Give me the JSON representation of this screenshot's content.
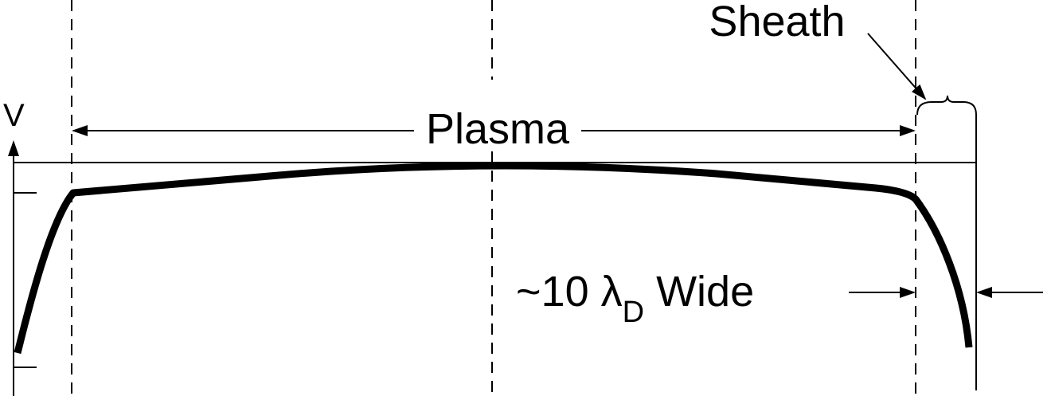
{
  "labels": {
    "axis_v": "V",
    "plasma": "Plasma",
    "sheath": "Sheath",
    "width_prefix": "~10 ",
    "lambda": "λ",
    "lambda_subscript": "D",
    "width_suffix": " Wide"
  },
  "colors": {
    "ink": "#000000",
    "background": "#ffffff"
  }
}
